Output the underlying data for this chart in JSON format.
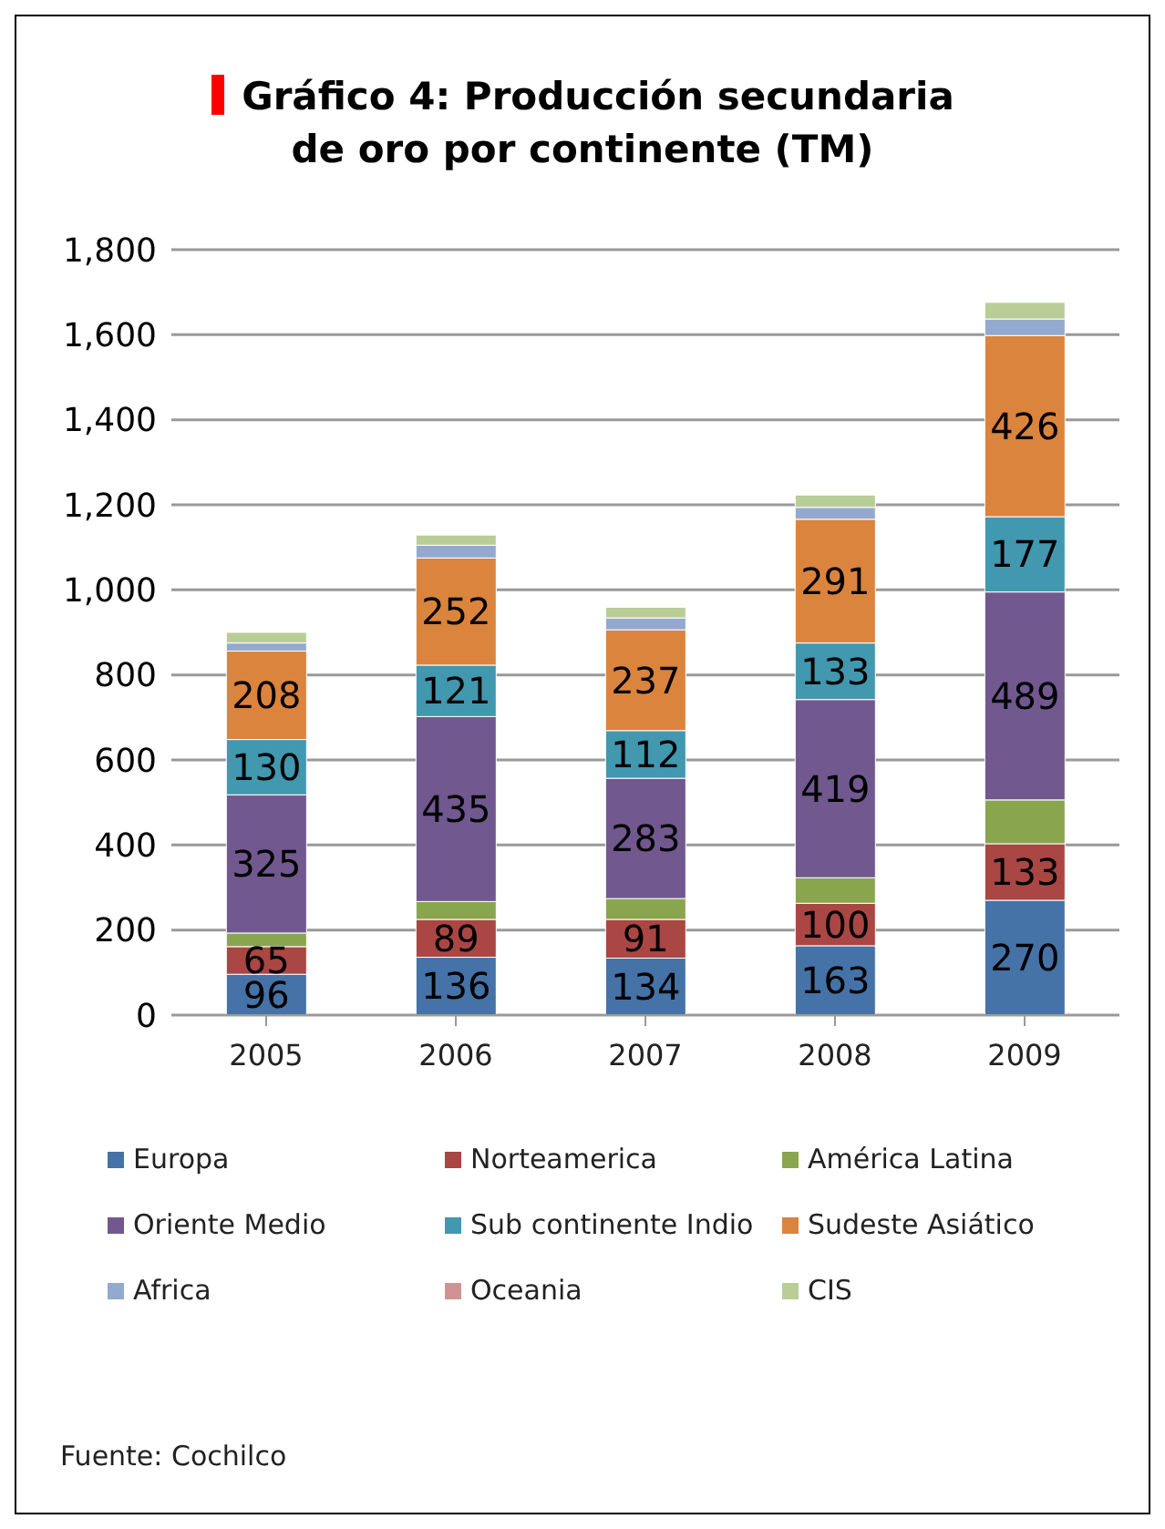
{
  "chart_data": {
    "type": "bar",
    "stacked": true,
    "title": "Gráfico 4: Producción secundaria de oro por continente (TM)",
    "categories": [
      "2005",
      "2006",
      "2007",
      "2008",
      "2009"
    ],
    "series": [
      {
        "name": "Europa",
        "color": "#4572a7",
        "values": [
          96,
          136,
          134,
          163,
          270
        ],
        "value_labels": [
          "96",
          "136",
          "134",
          "163",
          "270"
        ]
      },
      {
        "name": "Norteamerica",
        "color": "#aa4643",
        "values": [
          65,
          89,
          91,
          100,
          133
        ],
        "value_labels": [
          "65",
          "89",
          "91",
          "100",
          "133"
        ]
      },
      {
        "name": "América Latina",
        "color": "#89a54e",
        "values": [
          32,
          42,
          49,
          60,
          103
        ]
      },
      {
        "name": "Oriente Medio",
        "color": "#71588f",
        "values": [
          325,
          435,
          283,
          419,
          489
        ],
        "value_labels": [
          "325",
          "435",
          "283",
          "419",
          "489"
        ]
      },
      {
        "name": "Sub continente Indio",
        "color": "#4198af",
        "values": [
          130,
          121,
          112,
          133,
          177
        ],
        "value_labels": [
          "130",
          "121",
          "112",
          "133",
          "177"
        ]
      },
      {
        "name": "Sudeste Asiático",
        "color": "#db843d",
        "values": [
          208,
          252,
          237,
          291,
          426
        ],
        "value_labels": [
          "208",
          "252",
          "237",
          "291",
          "426"
        ]
      },
      {
        "name": "Africa",
        "color": "#93a9cf",
        "values": [
          19,
          30,
          28,
          28,
          39
        ]
      },
      {
        "name": "Oceania",
        "color": "#d19392",
        "values": [
          null,
          null,
          null,
          null,
          null
        ]
      },
      {
        "name": "CIS",
        "color": "#b9cd96",
        "values": [
          25,
          24,
          25,
          29,
          39
        ]
      }
    ],
    "ylim": [
      0,
      1800
    ],
    "yticks": [
      {
        "value": 0,
        "label": "0"
      },
      {
        "value": 200,
        "label": "200"
      },
      {
        "value": 400,
        "label": "400"
      },
      {
        "value": 600,
        "label": "600"
      },
      {
        "value": 800,
        "label": "800"
      },
      {
        "value": 1000,
        "label": "1,000"
      },
      {
        "value": 1200,
        "label": "1,200"
      },
      {
        "value": 1400,
        "label": "1,400"
      },
      {
        "value": 1600,
        "label": "1,600"
      },
      {
        "value": 1800,
        "label": "1,800"
      }
    ],
    "grid": "y",
    "legend": "bottom",
    "annotations": [
      "Fuente: Cochilco"
    ]
  }
}
